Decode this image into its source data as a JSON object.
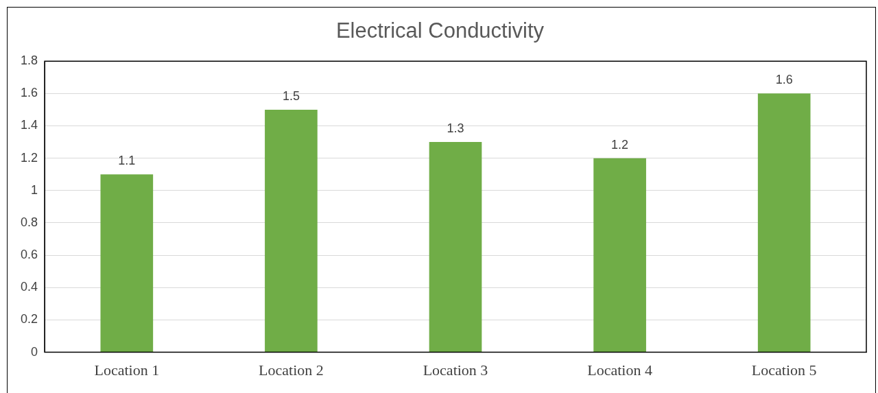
{
  "chart_data": {
    "type": "bar",
    "title": "Electrical Conductivity",
    "categories": [
      "Location 1",
      "Location 2",
      "Location 3",
      "Location 4",
      "Location 5"
    ],
    "values": [
      1.1,
      1.5,
      1.3,
      1.2,
      1.6
    ],
    "color": "#70ad47",
    "ylim": [
      0,
      1.8
    ],
    "yticks": [
      0,
      0.2,
      0.4,
      0.6,
      0.8,
      1,
      1.2,
      1.4,
      1.6,
      1.8
    ],
    "grid": "y",
    "data_labels": true,
    "legend": false
  }
}
